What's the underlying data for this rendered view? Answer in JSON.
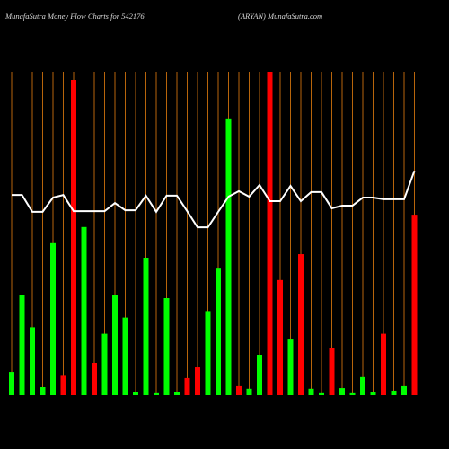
{
  "chart_data": {
    "type": "bar",
    "title": "MunafaSutra  Money Flow  Charts for 542176",
    "subtitle": "(ARYAN) MunafaSutra.com",
    "categories": [
      null,
      null,
      null,
      null,
      null,
      null,
      null,
      null,
      null,
      null,
      null,
      null,
      null,
      null,
      null,
      null,
      null,
      null,
      null,
      null,
      null,
      null,
      null,
      null,
      null,
      null,
      null,
      null,
      null,
      null,
      null,
      null,
      null,
      null,
      null,
      null,
      null,
      null,
      null,
      null
    ],
    "series": [
      {
        "values": [
          7.2,
          31,
          21,
          2.5,
          47,
          6,
          97.5,
          52,
          10,
          19,
          31,
          24,
          1,
          42.5,
          0.6,
          30,
          1,
          5.3,
          8.6,
          26,
          39.4,
          85.6,
          2.8,
          2,
          12.5,
          100,
          35.6,
          17.2,
          43.6,
          2,
          0.6,
          14.7,
          2.2,
          0.6,
          5.6,
          1,
          19,
          1.4,
          2.8,
          55.8
        ],
        "colors": [
          "#00ff00",
          "#00ff00",
          "#00ff00",
          "#00ff00",
          "#00ff00",
          "#ff0000",
          "#ff0000",
          "#00ff00",
          "#ff0000",
          "#00ff00",
          "#00ff00",
          "#00ff00",
          "#00ff00",
          "#00ff00",
          "#00ff00",
          "#00ff00",
          "#00ff00",
          "#ff0000",
          "#ff0000",
          "#00ff00",
          "#00ff00",
          "#00ff00",
          "#ff0000",
          "#00ff00",
          "#00ff00",
          "#ff0000",
          "#ff0000",
          "#00ff00",
          "#ff0000",
          "#00ff00",
          "#00ff00",
          "#ff0000",
          "#00ff00",
          "#00ff00",
          "#00ff00",
          "#00ff00",
          "#ff0000",
          "#00ff00",
          "#00ff00",
          "#ff0000"
        ]
      },
      {
        "type": "line",
        "color": "#ffffff",
        "axis": "y2",
        "values": [
          61.9,
          61.9,
          56.7,
          56.7,
          61.1,
          61.9,
          56.9,
          56.9,
          56.9,
          56.9,
          59.4,
          57.2,
          57.2,
          61.7,
          56.7,
          61.7,
          61.7,
          56.9,
          51.9,
          51.9,
          56.7,
          61.4,
          63.1,
          61.4,
          65,
          60,
          60,
          64.7,
          60,
          62.8,
          62.8,
          57.8,
          58.6,
          58.6,
          61.1,
          61.1,
          60.6,
          60.6,
          60.6,
          69.4
        ]
      }
    ],
    "ylim": [
      0,
      100
    ],
    "y2lim": [
      0,
      100
    ],
    "grid": true,
    "grid_color": "#b8650b",
    "background": "#000000"
  }
}
